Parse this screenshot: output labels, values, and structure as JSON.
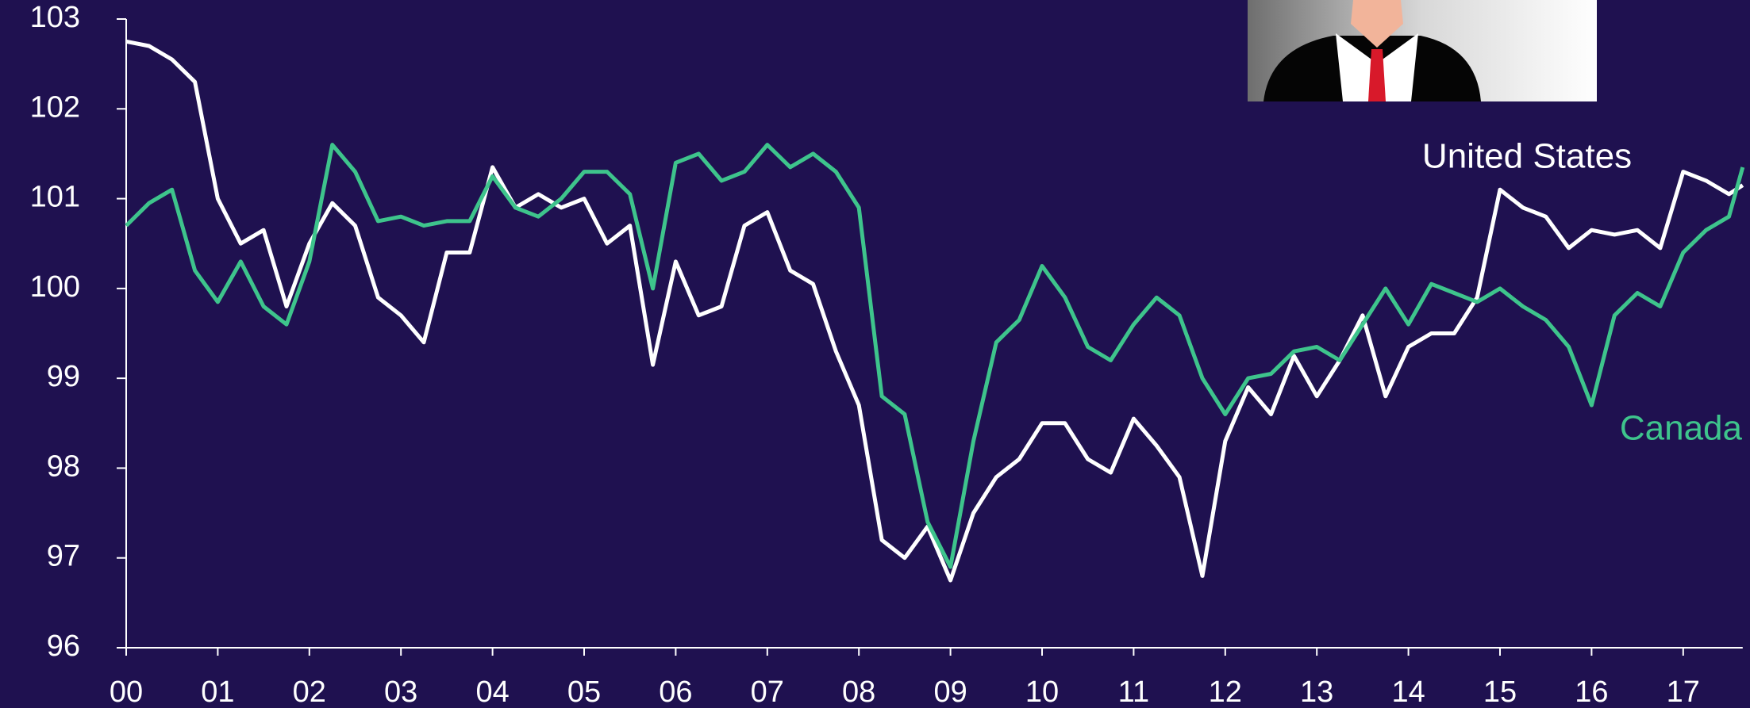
{
  "chart_data": {
    "type": "line",
    "x": [
      0,
      0.25,
      0.5,
      0.75,
      1,
      1.25,
      1.5,
      1.75,
      2,
      2.25,
      2.5,
      2.75,
      3,
      3.25,
      3.5,
      3.75,
      4,
      4.25,
      4.5,
      4.75,
      5,
      5.25,
      5.5,
      5.75,
      6,
      6.25,
      6.5,
      6.75,
      7,
      7.25,
      7.5,
      7.75,
      8,
      8.25,
      8.5,
      8.75,
      9,
      9.25,
      9.5,
      9.75,
      10,
      10.25,
      10.5,
      10.75,
      11,
      11.25,
      11.5,
      11.75,
      12,
      12.25,
      12.5,
      12.75,
      13,
      13.25,
      13.5,
      13.75,
      14,
      14.25,
      14.5,
      14.75,
      15,
      15.25,
      15.5,
      15.75,
      16,
      16.25,
      16.5,
      16.75,
      17,
      17.25,
      17.5,
      17.65
    ],
    "series": [
      {
        "name": "United States",
        "color": "#ffffff",
        "values": [
          102.75,
          102.7,
          102.55,
          102.3,
          101.0,
          100.5,
          100.65,
          99.8,
          100.5,
          100.95,
          100.7,
          99.9,
          99.7,
          99.4,
          100.4,
          100.4,
          101.35,
          100.9,
          101.05,
          100.9,
          101.0,
          100.5,
          100.7,
          99.15,
          100.3,
          99.7,
          99.8,
          100.7,
          100.85,
          100.2,
          100.05,
          99.3,
          98.7,
          97.2,
          97.0,
          97.35,
          96.75,
          97.5,
          97.9,
          98.1,
          98.5,
          98.5,
          98.1,
          97.95,
          98.55,
          98.25,
          97.9,
          96.8,
          98.3,
          98.9,
          98.6,
          99.25,
          98.8,
          99.2,
          99.7,
          98.8,
          99.35,
          99.5,
          99.5,
          99.9,
          101.1,
          100.9,
          100.8,
          100.45,
          100.65,
          100.6,
          100.65,
          100.45,
          101.3,
          101.2,
          101.05,
          101.15
        ]
      },
      {
        "name": "Canada",
        "color": "#3ec48c",
        "values": [
          100.7,
          100.95,
          101.1,
          100.2,
          99.85,
          100.3,
          99.8,
          99.6,
          100.3,
          101.6,
          101.3,
          100.75,
          100.8,
          100.7,
          100.75,
          100.75,
          101.25,
          100.9,
          100.8,
          101.0,
          101.3,
          101.3,
          101.05,
          100.0,
          101.4,
          101.5,
          101.2,
          101.3,
          101.6,
          101.35,
          101.5,
          101.3,
          100.9,
          98.8,
          98.6,
          97.4,
          96.9,
          98.3,
          99.4,
          99.65,
          100.25,
          99.9,
          99.35,
          99.2,
          99.6,
          99.9,
          99.7,
          99.0,
          98.6,
          99.0,
          99.05,
          99.3,
          99.35,
          99.2,
          99.6,
          100.0,
          99.6,
          100.05,
          99.95,
          99.85,
          100.0,
          99.8,
          99.65,
          99.35,
          98.7,
          99.7,
          99.95,
          99.8,
          100.4,
          100.65,
          100.8,
          101.35
        ]
      }
    ],
    "xlim": [
      0,
      17.65
    ],
    "xticks": [
      {
        "value": 0,
        "label": "00"
      },
      {
        "value": 1,
        "label": "01"
      },
      {
        "value": 2,
        "label": "02"
      },
      {
        "value": 3,
        "label": "03"
      },
      {
        "value": 4,
        "label": "04"
      },
      {
        "value": 5,
        "label": "05"
      },
      {
        "value": 6,
        "label": "06"
      },
      {
        "value": 7,
        "label": "07"
      },
      {
        "value": 8,
        "label": "08"
      },
      {
        "value": 9,
        "label": "09"
      },
      {
        "value": 10,
        "label": "10"
      },
      {
        "value": 11,
        "label": "11"
      },
      {
        "value": 12,
        "label": "12"
      },
      {
        "value": 13,
        "label": "13"
      },
      {
        "value": 14,
        "label": "14"
      },
      {
        "value": 15,
        "label": "15"
      },
      {
        "value": 16,
        "label": "16"
      },
      {
        "value": 17,
        "label": "17"
      }
    ],
    "ylim": [
      96,
      103
    ],
    "yticks": [
      96,
      97,
      98,
      99,
      100,
      101,
      102,
      103
    ]
  }
}
